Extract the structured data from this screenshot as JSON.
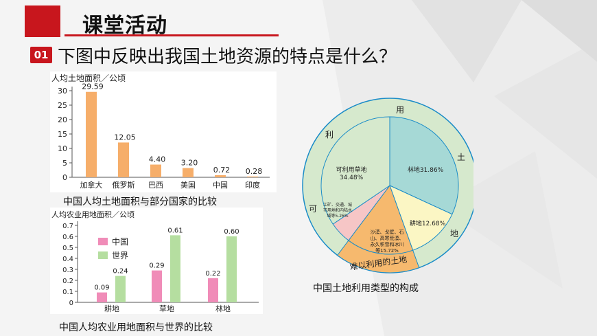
{
  "slide": {
    "title": "课堂活动",
    "question_number": "01",
    "question": "下图中反映出我国土地资源的特点是什么？"
  },
  "chart1": {
    "caption": "中国人均土地面积与部分国家的比较",
    "chart_data": {
      "type": "bar",
      "ylabel": "人均土地面积／公顷",
      "ylim": [
        0,
        30
      ],
      "yticks": [
        "0",
        "5",
        "10",
        "15",
        "20",
        "25",
        "30"
      ],
      "categories": [
        "加拿大",
        "俄罗斯",
        "巴西",
        "美国",
        "中国",
        "印度"
      ],
      "values": [
        29.59,
        12.05,
        4.4,
        3.2,
        0.72,
        0.28
      ],
      "value_labels": [
        "29.59",
        "12.05",
        "4.40",
        "3.20",
        "0.72",
        "0.28"
      ],
      "color": "#f6ae6a"
    }
  },
  "chart2": {
    "caption": "中国人均农业用地面积与世界的比较",
    "chart_data": {
      "type": "bar",
      "ylabel": "人均农业用地面积／公顷",
      "ylim": [
        0,
        0.7
      ],
      "yticks": [
        "0",
        "0.1",
        "0.2",
        "0.3",
        "0.4",
        "0.5",
        "0.6",
        "0.7"
      ],
      "categories": [
        "耕地",
        "草地",
        "林地"
      ],
      "series": [
        {
          "name": "中国",
          "values": [
            0.09,
            0.29,
            0.22
          ],
          "labels": [
            "0.09",
            "0.29",
            "0.22"
          ],
          "color": "#f08cb8"
        },
        {
          "name": "世界",
          "values": [
            0.24,
            0.61,
            0.6
          ],
          "labels": [
            "0.24",
            "0.61",
            "0.60"
          ],
          "color": "#b5dea0"
        }
      ],
      "legend": "top-left"
    }
  },
  "chart3": {
    "caption": "中国土地利用类型的构成",
    "chart_data": {
      "type": "pie",
      "ring_top_chars": [
        "用",
        "土"
      ],
      "ring_left_chars": [
        "利",
        "可"
      ],
      "ring_right_chars": [
        "地"
      ],
      "ring_bottom_label": "难以利用的土地",
      "slices": [
        {
          "name": "林地",
          "value": 31.86,
          "label": "林地31.86%",
          "color": "#a6d9d6"
        },
        {
          "name": "耕地",
          "value": 12.68,
          "label": "耕地12.68%",
          "color": "#fbf6c4"
        },
        {
          "name": "沙漠、戈壁、石山、高寒荒漠、永久积雪和冰川等",
          "value": 15.72,
          "label": [
            "沙漠、戈壁、石",
            "山、高寒荒漠、",
            "永久积雪和冰川",
            "等15.72%"
          ],
          "color": "#f6b96e"
        },
        {
          "name": "工矿、交通、城市用地和内陆水域等",
          "value": 5.26,
          "label": [
            "工矿、交通、城",
            "市用地和内陆水",
            "域等5.26%"
          ],
          "color": "#f6c6c6"
        },
        {
          "name": "可利用草地",
          "value": 34.48,
          "label": [
            "可利用草地",
            "34.48%"
          ],
          "color": "#d6e9cd"
        }
      ]
    }
  }
}
